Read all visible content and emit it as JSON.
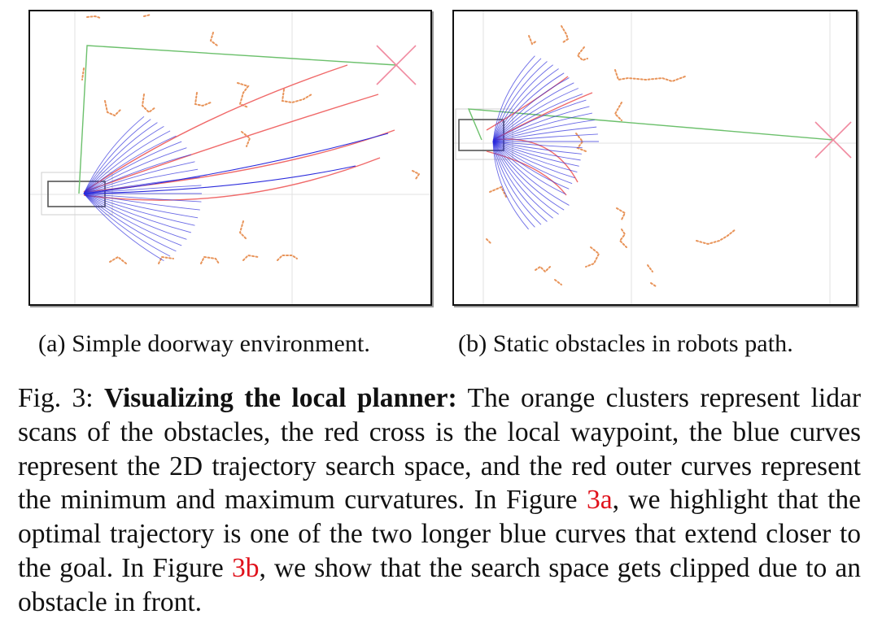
{
  "figure": {
    "panels": [
      {
        "id": "a",
        "subcaption": "(a) Simple doorway environment."
      },
      {
        "id": "b",
        "subcaption": "(b) Static obstacles in robots path."
      }
    ],
    "caption": {
      "label": "Fig. 3:",
      "title": "Visualizing the local planner:",
      "text_1": "The orange clusters represent lidar scans of the obstacles, the red cross is the local waypoint, the blue curves represent the 2D trajectory search space, and the red outer curves represent the minimum and maximum curvatures. In Figure",
      "ref_1": "3a",
      "text_2": ", we highlight that the optimal trajectory is one of the two longer blue curves that extend closer to the goal. In Figure",
      "ref_2": "3b",
      "text_3": ", we show that the search space gets clipped due to an obstacle in front."
    },
    "colors": {
      "obstacle": "#e8945a",
      "waypoint": "#f08aa0",
      "trajectory": "#2b2bdc",
      "bounds": "#f06a6a",
      "path": "#6cc06c",
      "grid": "#e2e2e2"
    }
  }
}
